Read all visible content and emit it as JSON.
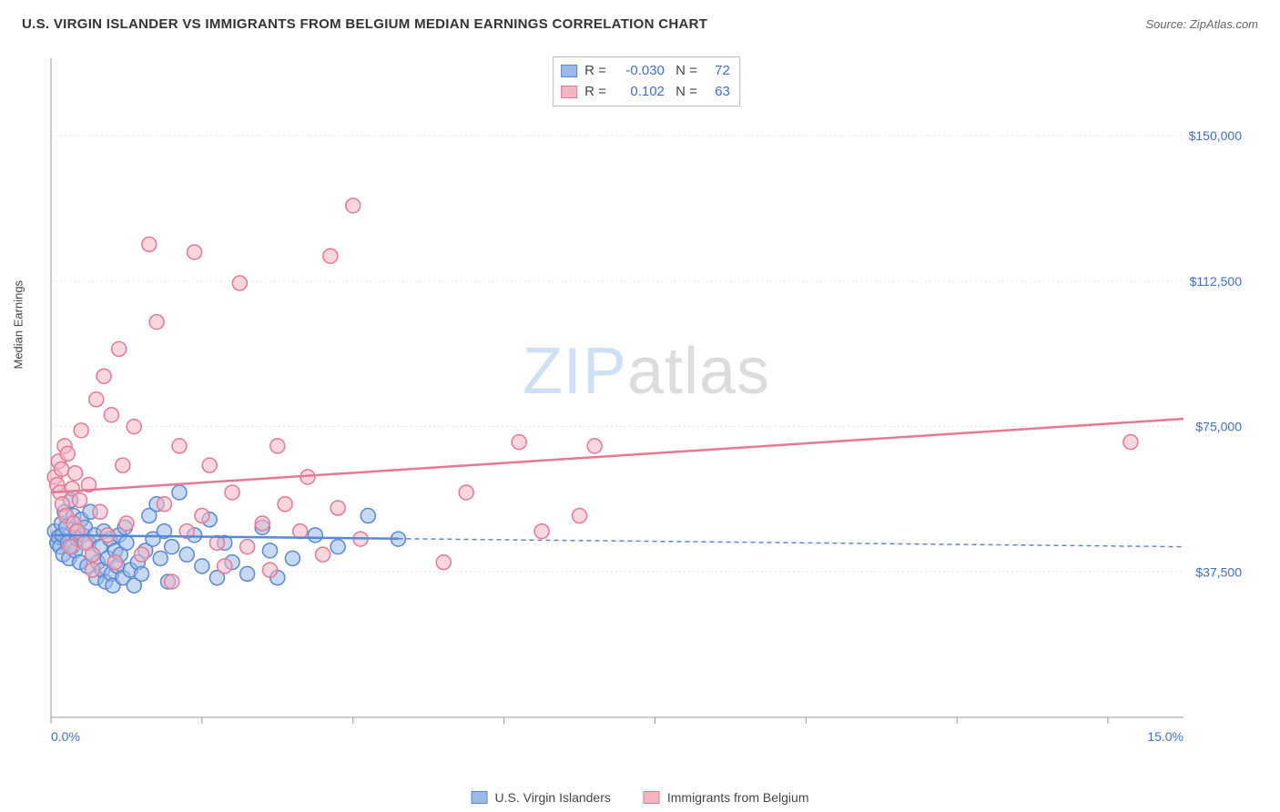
{
  "header": {
    "title": "U.S. VIRGIN ISLANDER VS IMMIGRANTS FROM BELGIUM MEDIAN EARNINGS CORRELATION CHART",
    "source": "Source: ZipAtlas.com"
  },
  "chart": {
    "type": "scatter",
    "ylabel": "Median Earnings",
    "xlim": [
      0,
      15
    ],
    "ylim": [
      0,
      170000
    ],
    "x_axis_labels": {
      "min": "0.0%",
      "max": "15.0%"
    },
    "y_gridlines": [
      {
        "value": 37500,
        "label": "$37,500"
      },
      {
        "value": 75000,
        "label": "$75,000"
      },
      {
        "value": 112500,
        "label": "$112,500"
      },
      {
        "value": 150000,
        "label": "$150,000"
      }
    ],
    "x_ticks": [
      0,
      2,
      4,
      6,
      8,
      10,
      12,
      14
    ],
    "background_color": "#ffffff",
    "grid_color": "#e4e4e4",
    "axis_color": "#999999",
    "marker_radius": 8,
    "marker_stroke_width": 1.5,
    "regression_line_width": 2.5,
    "watermark": {
      "part1": "ZIP",
      "part2": "atlas"
    },
    "series": [
      {
        "id": "usvi",
        "name": "U.S. Virgin Islanders",
        "fill": "#9bb9e8",
        "stroke": "#5a87d0",
        "fill_opacity": 0.55,
        "R": "-0.030",
        "N": "72",
        "regression": {
          "y_at_xmin": 47000,
          "y_at_xmax": 44000,
          "solid_until_x": 4.6
        },
        "points": [
          [
            0.05,
            48000
          ],
          [
            0.08,
            45000
          ],
          [
            0.1,
            46500
          ],
          [
            0.12,
            44000
          ],
          [
            0.14,
            50000
          ],
          [
            0.15,
            47000
          ],
          [
            0.16,
            42000
          ],
          [
            0.18,
            53000
          ],
          [
            0.2,
            49000
          ],
          [
            0.22,
            45000
          ],
          [
            0.24,
            41000
          ],
          [
            0.26,
            56000
          ],
          [
            0.28,
            44000
          ],
          [
            0.3,
            52000
          ],
          [
            0.32,
            43000
          ],
          [
            0.34,
            48000
          ],
          [
            0.35,
            46000
          ],
          [
            0.38,
            40000
          ],
          [
            0.4,
            51000
          ],
          [
            0.42,
            47000
          ],
          [
            0.45,
            49000
          ],
          [
            0.48,
            39000
          ],
          [
            0.5,
            45000
          ],
          [
            0.52,
            53000
          ],
          [
            0.55,
            42000
          ],
          [
            0.58,
            47000
          ],
          [
            0.6,
            36000
          ],
          [
            0.62,
            40000
          ],
          [
            0.65,
            44000
          ],
          [
            0.68,
            38000
          ],
          [
            0.7,
            48000
          ],
          [
            0.72,
            35000
          ],
          [
            0.75,
            41000
          ],
          [
            0.78,
            46000
          ],
          [
            0.8,
            37000
          ],
          [
            0.82,
            34000
          ],
          [
            0.85,
            43000
          ],
          [
            0.88,
            39000
          ],
          [
            0.9,
            47000
          ],
          [
            0.92,
            42000
          ],
          [
            0.95,
            36000
          ],
          [
            0.98,
            49000
          ],
          [
            1.0,
            45000
          ],
          [
            1.05,
            38000
          ],
          [
            1.1,
            34000
          ],
          [
            1.15,
            40000
          ],
          [
            1.2,
            37000
          ],
          [
            1.25,
            43000
          ],
          [
            1.3,
            52000
          ],
          [
            1.35,
            46000
          ],
          [
            1.4,
            55000
          ],
          [
            1.45,
            41000
          ],
          [
            1.5,
            48000
          ],
          [
            1.55,
            35000
          ],
          [
            1.6,
            44000
          ],
          [
            1.7,
            58000
          ],
          [
            1.8,
            42000
          ],
          [
            1.9,
            47000
          ],
          [
            2.0,
            39000
          ],
          [
            2.1,
            51000
          ],
          [
            2.2,
            36000
          ],
          [
            2.3,
            45000
          ],
          [
            2.4,
            40000
          ],
          [
            2.6,
            37000
          ],
          [
            2.8,
            49000
          ],
          [
            2.9,
            43000
          ],
          [
            3.0,
            36000
          ],
          [
            3.2,
            41000
          ],
          [
            3.5,
            47000
          ],
          [
            3.8,
            44000
          ],
          [
            4.2,
            52000
          ],
          [
            4.6,
            46000
          ]
        ]
      },
      {
        "id": "belgium",
        "name": "Immigrants from Belgium",
        "fill": "#f5b6c4",
        "stroke": "#e57893",
        "fill_opacity": 0.55,
        "R": "0.102",
        "N": "63",
        "regression": {
          "y_at_xmin": 58000,
          "y_at_xmax": 77000,
          "solid_until_x": 15
        },
        "points": [
          [
            0.05,
            62000
          ],
          [
            0.08,
            60000
          ],
          [
            0.1,
            66000
          ],
          [
            0.12,
            58000
          ],
          [
            0.14,
            64000
          ],
          [
            0.15,
            55000
          ],
          [
            0.18,
            70000
          ],
          [
            0.2,
            52000
          ],
          [
            0.22,
            68000
          ],
          [
            0.25,
            44000
          ],
          [
            0.28,
            59000
          ],
          [
            0.3,
            50000
          ],
          [
            0.32,
            63000
          ],
          [
            0.35,
            48000
          ],
          [
            0.38,
            56000
          ],
          [
            0.4,
            74000
          ],
          [
            0.45,
            45000
          ],
          [
            0.5,
            60000
          ],
          [
            0.55,
            42000
          ],
          [
            0.6,
            82000
          ],
          [
            0.65,
            53000
          ],
          [
            0.7,
            88000
          ],
          [
            0.75,
            47000
          ],
          [
            0.8,
            78000
          ],
          [
            0.85,
            40000
          ],
          [
            0.9,
            95000
          ],
          [
            0.95,
            65000
          ],
          [
            1.0,
            50000
          ],
          [
            1.1,
            75000
          ],
          [
            1.2,
            42000
          ],
          [
            1.3,
            122000
          ],
          [
            1.4,
            102000
          ],
          [
            1.5,
            55000
          ],
          [
            1.6,
            35000
          ],
          [
            1.7,
            70000
          ],
          [
            1.8,
            48000
          ],
          [
            1.9,
            120000
          ],
          [
            2.0,
            52000
          ],
          [
            2.1,
            65000
          ],
          [
            2.2,
            45000
          ],
          [
            2.3,
            39000
          ],
          [
            2.4,
            58000
          ],
          [
            2.5,
            112000
          ],
          [
            2.6,
            44000
          ],
          [
            2.8,
            50000
          ],
          [
            2.9,
            38000
          ],
          [
            3.0,
            70000
          ],
          [
            3.1,
            55000
          ],
          [
            3.3,
            48000
          ],
          [
            3.4,
            62000
          ],
          [
            3.6,
            42000
          ],
          [
            3.7,
            119000
          ],
          [
            3.8,
            54000
          ],
          [
            4.0,
            132000
          ],
          [
            4.1,
            46000
          ],
          [
            5.2,
            40000
          ],
          [
            5.5,
            58000
          ],
          [
            6.2,
            71000
          ],
          [
            6.5,
            48000
          ],
          [
            7.0,
            52000
          ],
          [
            7.2,
            70000
          ],
          [
            14.3,
            71000
          ],
          [
            0.55,
            38000
          ]
        ]
      }
    ],
    "bottom_legend": [
      {
        "label": "U.S. Virgin Islanders",
        "fill": "#9bb9e8",
        "stroke": "#5a87d0"
      },
      {
        "label": "Immigrants from Belgium",
        "fill": "#f5b6c4",
        "stroke": "#e57893"
      }
    ]
  }
}
